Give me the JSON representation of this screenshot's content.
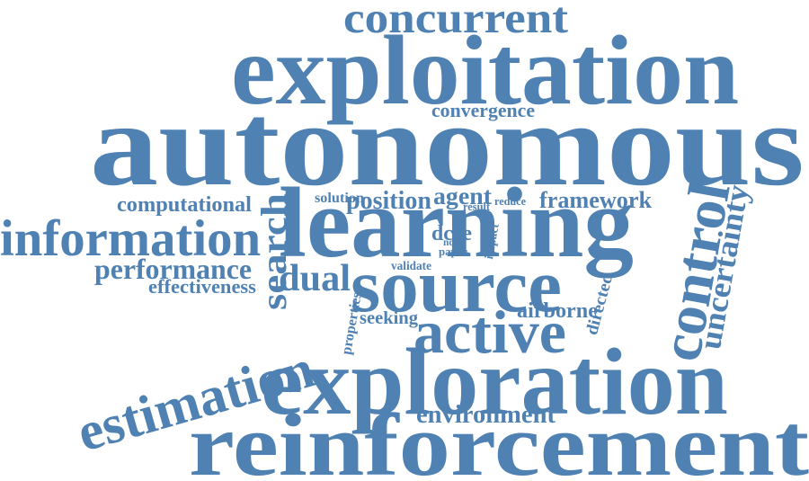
{
  "colors": {
    "word": "#4f81b3",
    "background": "#ffffff"
  },
  "words": [
    {
      "id": "concurrent",
      "text": "concurrent"
    },
    {
      "id": "exploitation",
      "text": "exploitation"
    },
    {
      "id": "convergence",
      "text": "convergence"
    },
    {
      "id": "autonomous",
      "text": "autonomous"
    },
    {
      "id": "computational",
      "text": "computational"
    },
    {
      "id": "solution",
      "text": "solution"
    },
    {
      "id": "position",
      "text": "position"
    },
    {
      "id": "agent",
      "text": "agent"
    },
    {
      "id": "result",
      "text": "result"
    },
    {
      "id": "reduce",
      "text": "reduce"
    },
    {
      "id": "framework",
      "text": "framework"
    },
    {
      "id": "search",
      "text": "search"
    },
    {
      "id": "learning",
      "text": "learning"
    },
    {
      "id": "control",
      "text": "control"
    },
    {
      "id": "uncertainty",
      "text": "uncertainty"
    },
    {
      "id": "information",
      "text": "information"
    },
    {
      "id": "dcee",
      "text": "dcee"
    },
    {
      "id": "noise",
      "text": "noise"
    },
    {
      "id": "paper",
      "text": "paper"
    },
    {
      "id": "impact",
      "text": "impact"
    },
    {
      "id": "performance",
      "text": "performance"
    },
    {
      "id": "validate",
      "text": "validate"
    },
    {
      "id": "dual",
      "text": "dual"
    },
    {
      "id": "source",
      "text": "source"
    },
    {
      "id": "effectiveness",
      "text": "effectiveness"
    },
    {
      "id": "properties",
      "text": "properties"
    },
    {
      "id": "directed",
      "text": "directed"
    },
    {
      "id": "seeking",
      "text": "seeking"
    },
    {
      "id": "airborne",
      "text": "airborne"
    },
    {
      "id": "active",
      "text": "active"
    },
    {
      "id": "estimation",
      "text": "estimation"
    },
    {
      "id": "exploration",
      "text": "exploration"
    },
    {
      "id": "environment",
      "text": "environment"
    },
    {
      "id": "reinforcement",
      "text": "reinforcement"
    }
  ]
}
